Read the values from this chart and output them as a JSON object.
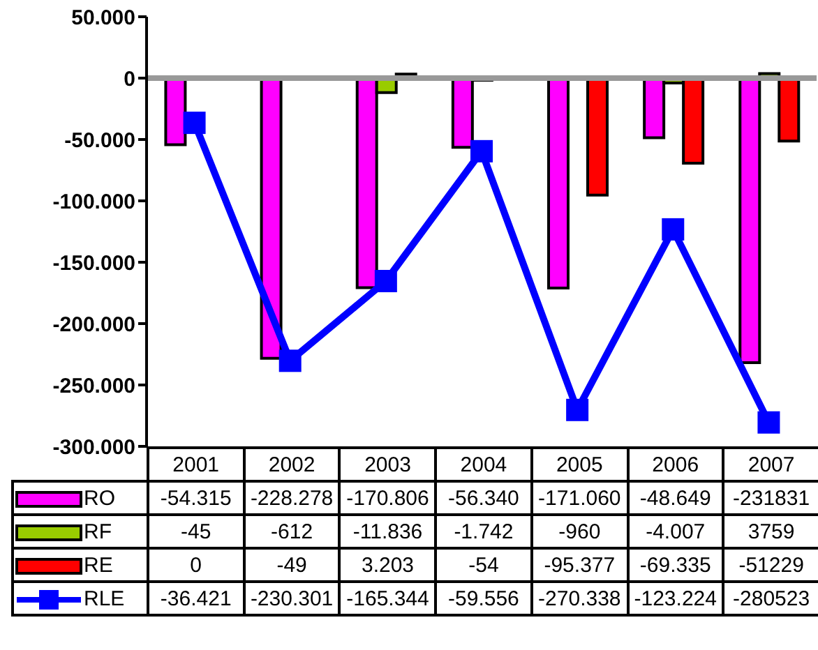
{
  "chart_data": {
    "type": "bar",
    "categories": [
      "2001",
      "2002",
      "2003",
      "2004",
      "2005",
      "2006",
      "2007"
    ],
    "series": [
      {
        "name": "RO",
        "color": "#ff00ff",
        "values": [
          -54315,
          -228278,
          -170806,
          -56340,
          -171060,
          -48649,
          -231831
        ],
        "value_labels": [
          "-54.315",
          "-228.278",
          "-170.806",
          "-56.340",
          "-171.060",
          "-48.649",
          "-231831"
        ]
      },
      {
        "name": "RF",
        "color": "#99cc00",
        "values": [
          -45,
          -612,
          -11836,
          -1742,
          -960,
          -4007,
          3759
        ],
        "value_labels": [
          "-45",
          "-612",
          "-11.836",
          "-1.742",
          "-960",
          "-4.007",
          "3759"
        ]
      },
      {
        "name": "RE",
        "color": "#ff0000",
        "values": [
          0,
          -49,
          3203,
          -54,
          -95377,
          -69335,
          -51229
        ],
        "value_labels": [
          "0",
          "-49",
          "3.203",
          "-54",
          "-95.377",
          "-69.335",
          "-51229"
        ]
      },
      {
        "name": "RLE",
        "type": "line",
        "color": "#0000ff",
        "marker": "square",
        "values": [
          -36421,
          -230301,
          -165344,
          -59556,
          -270338,
          -123224,
          -280523
        ],
        "value_labels": [
          "-36.421",
          "-230.301",
          "-165.344",
          "-59.556",
          "-270.338",
          "-123.224",
          "-280523"
        ]
      }
    ],
    "ylim": [
      -300000,
      50000
    ],
    "yticks": [
      {
        "value": -300000,
        "label": "-300.000"
      },
      {
        "value": -250000,
        "label": "-250.000"
      },
      {
        "value": -200000,
        "label": "-200.000"
      },
      {
        "value": -150000,
        "label": "-150.000"
      },
      {
        "value": -100000,
        "label": "-100.000"
      },
      {
        "value": -50000,
        "label": "-50.000"
      },
      {
        "value": 0,
        "label": "0"
      },
      {
        "value": 50000,
        "label": "50.000"
      }
    ],
    "ref_lines": [
      {
        "axis": "y",
        "value": 0,
        "color": "#999999"
      }
    ],
    "grid": false,
    "legend": "bottom"
  }
}
